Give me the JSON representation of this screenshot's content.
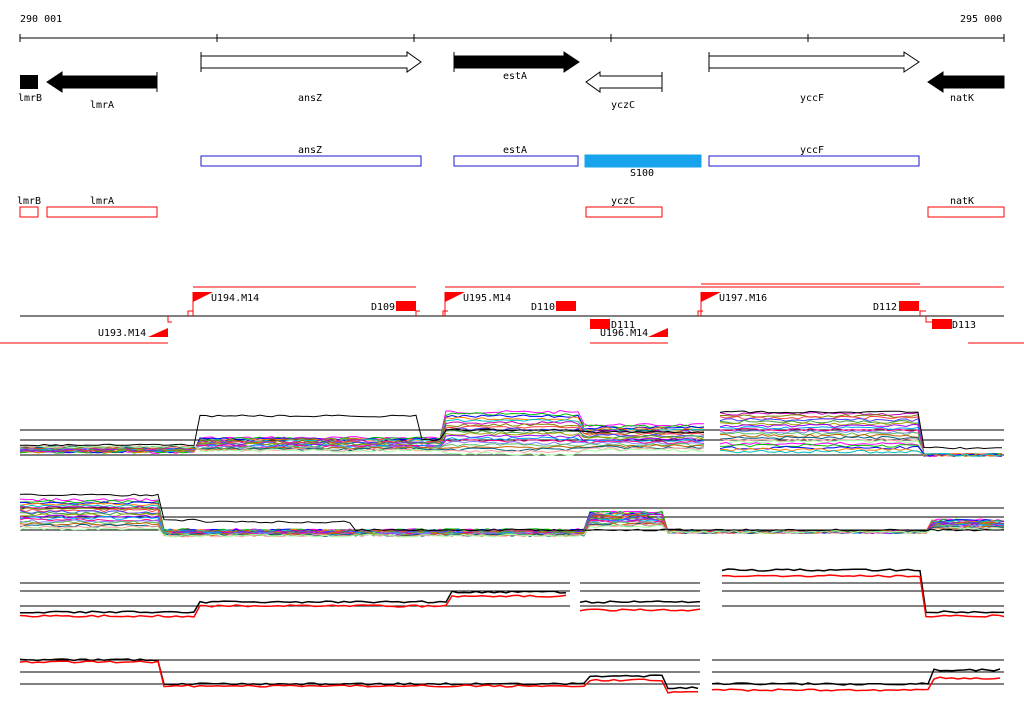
{
  "coords": {
    "start": "290 001",
    "end": "295 000"
  },
  "genes_top": [
    {
      "name": "lmrB",
      "strand": "-",
      "fill": "black"
    },
    {
      "name": "lmrA",
      "strand": "-",
      "fill": "black"
    },
    {
      "name": "ansZ",
      "strand": "+",
      "fill": "white"
    },
    {
      "name": "estA",
      "strand": "+",
      "fill": "black"
    },
    {
      "name": "yczC",
      "strand": "-",
      "fill": "white"
    },
    {
      "name": "yccF",
      "strand": "+",
      "fill": "white"
    },
    {
      "name": "natK",
      "strand": "-",
      "fill": "black"
    }
  ],
  "blue_boxes": [
    {
      "name": "ansZ",
      "filled": false
    },
    {
      "name": "estA",
      "filled": false
    },
    {
      "name": "S100",
      "filled": true
    },
    {
      "name": "yccF",
      "filled": false
    }
  ],
  "red_boxes": [
    "lmrB",
    "lmrA",
    "yczC",
    "natK"
  ],
  "segment_labels": [
    "U193.M14",
    "U194.M14",
    "D109",
    "U195.M14",
    "D110",
    "D111",
    "U196.M14",
    "U197.M16",
    "D112",
    "D113"
  ],
  "colors": {
    "blue_outline": "#1a1acc",
    "blue_fill": "#17a4ec",
    "red": "#ff0000",
    "black": "#000000",
    "axis": "#000000"
  }
}
